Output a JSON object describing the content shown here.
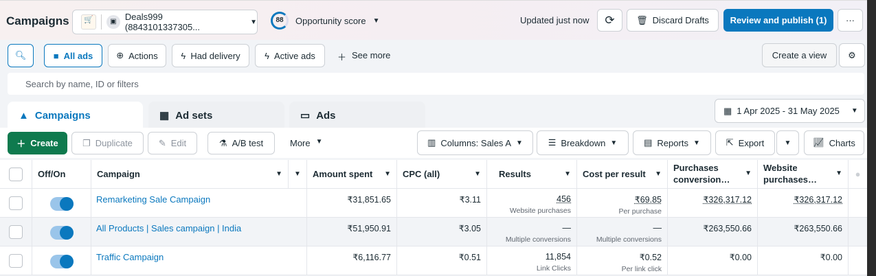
{
  "header": {
    "title": "Campaigns",
    "account": "Deals999 (8843101337305...",
    "score": "88",
    "score_label": "Opportunity score",
    "updated": "Updated just now",
    "discard": "Discard Drafts",
    "review": "Review and publish (1)",
    "more": "···"
  },
  "filters": {
    "all_ads": "All ads",
    "actions": "Actions",
    "had_delivery": "Had delivery",
    "active_ads": "Active ads",
    "see_more": "See more",
    "create_view": "Create a view"
  },
  "search": {
    "placeholder": "Search by name, ID or filters"
  },
  "tabs": [
    {
      "label": "Campaigns"
    },
    {
      "label": "Ad sets"
    },
    {
      "label": "Ads"
    }
  ],
  "date_range": "1 Apr 2025 - 31 May 2025",
  "toolbar": {
    "create": "Create",
    "duplicate": "Duplicate",
    "edit": "Edit",
    "ab_test": "A/B test",
    "more": "More",
    "columns": "Columns: Sales A",
    "breakdown": "Breakdown",
    "reports": "Reports",
    "export": "Export",
    "charts": "Charts"
  },
  "columns": [
    "Off/On",
    "Campaign",
    "Amount spent",
    "CPC (all)",
    "Results",
    "Cost per result",
    "Purchases conversion…",
    "Website purchases…"
  ],
  "rows": [
    {
      "name": "Remarketing Sale Campaign",
      "amount": "₹31,851.65",
      "cpc": "₹3.11",
      "results": "456",
      "results_sub": "Website purchases",
      "cost": "₹69.85",
      "cost_sub": "Per purchase",
      "purchases": "₹326,317.12",
      "website": "₹326,317.12",
      "on": true
    },
    {
      "name": "All Products | Sales campaign | India",
      "amount": "₹51,950.91",
      "cpc": "₹3.05",
      "results": "—",
      "results_sub": "Multiple conversions",
      "cost": "—",
      "cost_sub": "Multiple conversions",
      "purchases": "₹263,550.66",
      "website": "₹263,550.66",
      "on": true
    },
    {
      "name": "Traffic Campaign",
      "amount": "₹6,116.77",
      "cpc": "₹0.51",
      "results": "11,854",
      "results_sub": "Link Clicks",
      "cost": "₹0.52",
      "cost_sub": "Per link click",
      "purchases": "₹0.00",
      "website": "₹0.00",
      "on": true
    }
  ],
  "colors": {
    "accent": "#0a78be",
    "create": "#0f7a4e"
  }
}
